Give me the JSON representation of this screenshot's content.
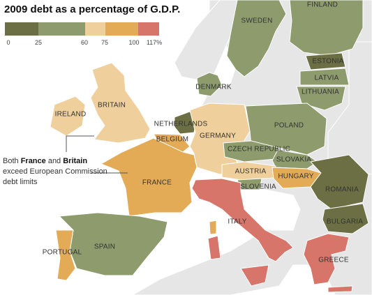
{
  "title": "2009 debt as a percentage of G.D.P.",
  "legend": {
    "ticks": [
      "0",
      "25",
      "60",
      "75",
      "100",
      "117%"
    ],
    "colors": [
      "#6b6f43",
      "#8e9b6d",
      "#efcf9c",
      "#e4ab57",
      "#d8756a"
    ]
  },
  "countries": {
    "finland": "FINLAND",
    "sweden": "SWEDEN",
    "estonia": "ESTONIA",
    "latvia": "LATVIA",
    "lithuania": "LITHUANIA",
    "denmark": "DENMARK",
    "britain": "BRITAIN",
    "ireland": "IRELAND",
    "netherlands": "NETHERLANDS",
    "belgium": "BELGIUM",
    "germany": "GERMANY",
    "poland": "POLAND",
    "czech": "CZECH REPUBLIC",
    "slovakia": "SLOVAKIA",
    "austria": "AUSTRIA",
    "hungary": "HUNGARY",
    "slovenia": "SLOVENIA",
    "romania": "ROMANIA",
    "bulgaria": "BULGARIA",
    "france": "FRANCE",
    "italy": "ITALY",
    "spain": "SPAIN",
    "portugal": "PORTUGAL",
    "greece": "GREECE"
  },
  "annotation": {
    "part1": "Both ",
    "france": "France",
    "part2": " and ",
    "britain": "Britain",
    "part3": " exceed European Commission debt limits"
  }
}
